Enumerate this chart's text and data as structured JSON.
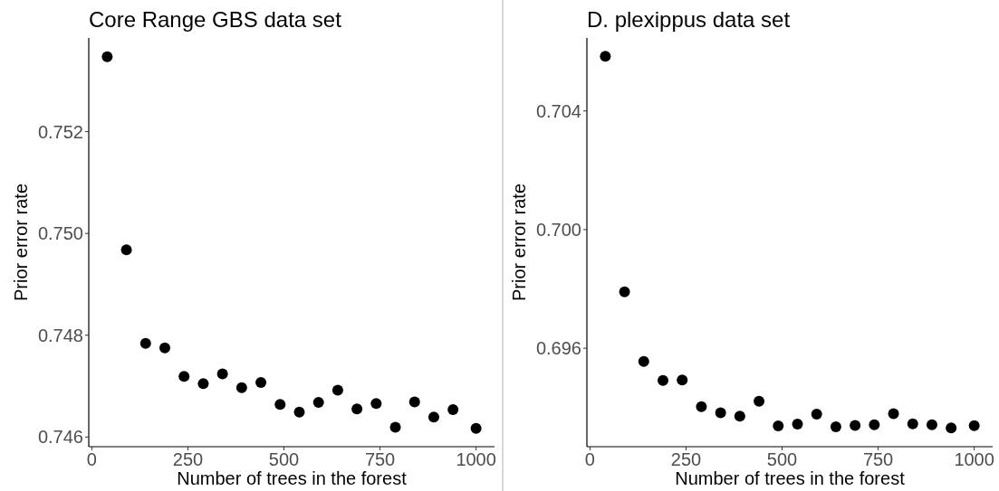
{
  "chart_data": [
    {
      "type": "scatter",
      "title": "Core Range GBS data set",
      "xlabel": "Number of trees in the forest",
      "ylabel": "Prior error rate",
      "marker": "circle",
      "color": "#000000",
      "x": [
        40,
        90,
        140,
        190,
        240,
        290,
        340,
        390,
        440,
        490,
        540,
        590,
        640,
        690,
        740,
        790,
        840,
        890,
        940,
        1000
      ],
      "values": [
        0.75347,
        0.74968,
        0.74784,
        0.74775,
        0.74719,
        0.74705,
        0.74724,
        0.74697,
        0.74707,
        0.74664,
        0.74649,
        0.74668,
        0.74692,
        0.74655,
        0.74666,
        0.74619,
        0.74669,
        0.74639,
        0.74654,
        0.74617
      ],
      "xlim": [
        -8,
        1048
      ],
      "ylim": [
        0.74581,
        0.75384
      ],
      "xticks": [
        0,
        250,
        500,
        750,
        1000
      ],
      "yticks": [
        {
          "value": 0.746,
          "label": "0.746"
        },
        {
          "value": 0.748,
          "label": "0.748"
        },
        {
          "value": 0.75,
          "label": "0.750"
        },
        {
          "value": 0.752,
          "label": "0.752"
        }
      ]
    },
    {
      "type": "scatter",
      "title": "D. plexippus data set",
      "xlabel": "Number of trees in the forest",
      "ylabel": "Prior error rate",
      "marker": "circle",
      "color": "#000000",
      "x": [
        40,
        90,
        140,
        190,
        240,
        290,
        340,
        390,
        440,
        490,
        540,
        590,
        640,
        690,
        740,
        790,
        840,
        890,
        940,
        1000
      ],
      "values": [
        0.70584,
        0.6979,
        0.69555,
        0.69491,
        0.69493,
        0.69403,
        0.69382,
        0.69371,
        0.69421,
        0.69338,
        0.69344,
        0.69378,
        0.69335,
        0.6934,
        0.69342,
        0.69379,
        0.69345,
        0.69342,
        0.69331,
        0.69339
      ],
      "xlim": [
        -8,
        1048
      ],
      "ylim": [
        0.69268,
        0.70646
      ],
      "xticks": [
        0,
        250,
        500,
        750,
        1000
      ],
      "yticks": [
        {
          "value": 0.696,
          "label": "0.696"
        },
        {
          "value": 0.7,
          "label": "0.700"
        },
        {
          "value": 0.704,
          "label": "0.704"
        }
      ]
    }
  ]
}
